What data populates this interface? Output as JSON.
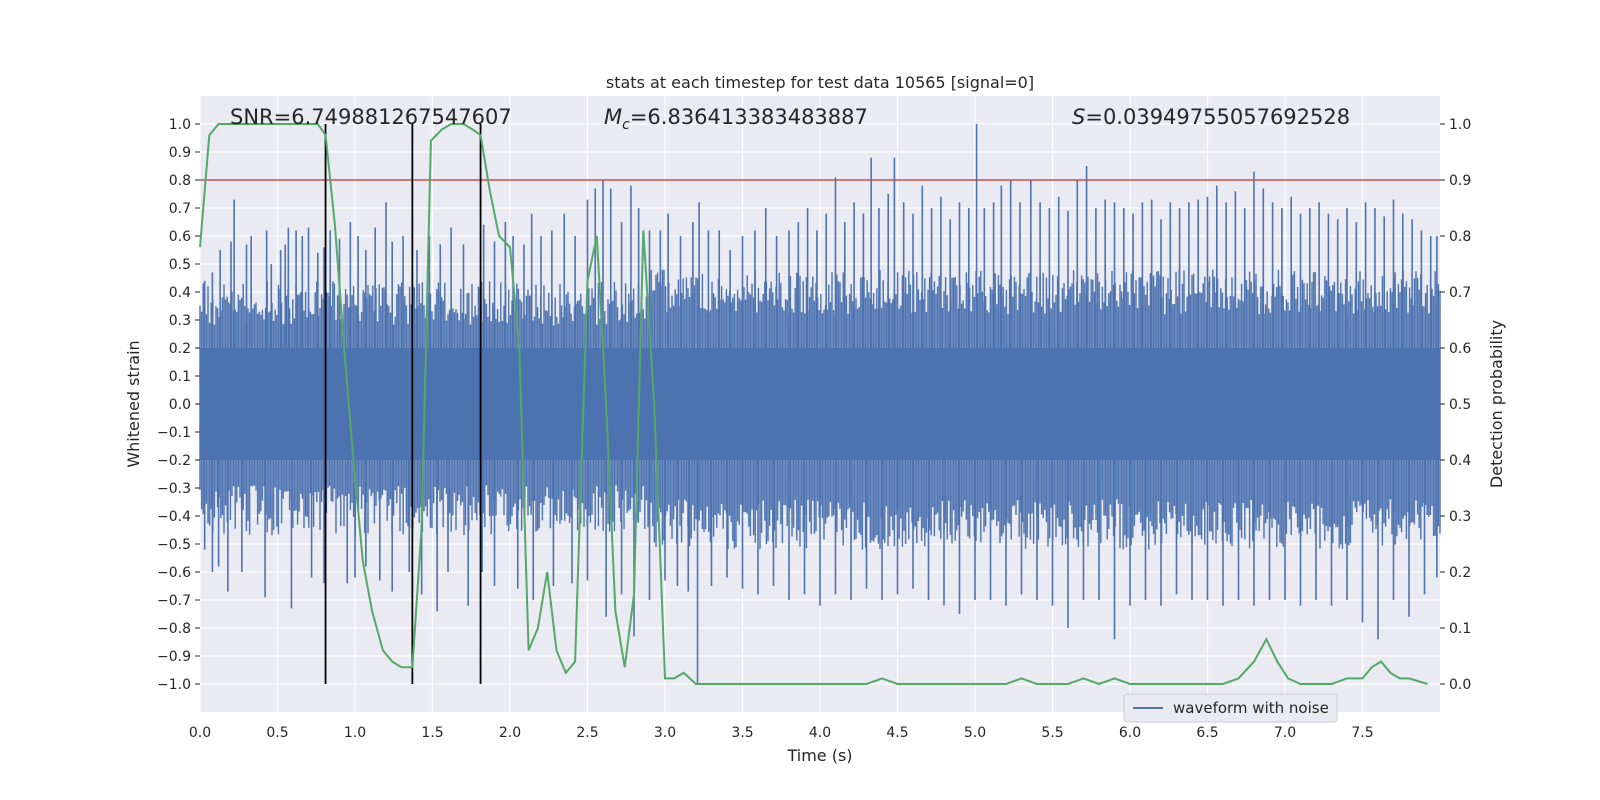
{
  "chart_data": {
    "type": "line",
    "title": "stats at each timestep for test data 10565 [signal=0]",
    "xlabel": "Time (s)",
    "ylabel": "Whitened strain",
    "ylabel_right": "Detection probability",
    "xlim": [
      0,
      8
    ],
    "ylim": [
      -1.1,
      1.1
    ],
    "ylim_right": [
      -0.05,
      1.05
    ],
    "xticks": [
      "0.0",
      "0.5",
      "1.0",
      "1.5",
      "2.0",
      "2.5",
      "3.0",
      "3.5",
      "4.0",
      "4.5",
      "5.0",
      "5.5",
      "6.0",
      "6.5",
      "7.0",
      "7.5"
    ],
    "yticks": [
      "1.0",
      "0.9",
      "0.8",
      "0.7",
      "0.6",
      "0.5",
      "0.4",
      "0.3",
      "0.2",
      "0.1",
      "0.0",
      "−0.1",
      "−0.2",
      "−0.3",
      "−0.4",
      "−0.5",
      "−0.6",
      "−0.7",
      "−0.8",
      "−0.9",
      "−1.0"
    ],
    "yticks_right": [
      "1.0",
      "0.9",
      "0.8",
      "0.7",
      "0.6",
      "0.5",
      "0.4",
      "0.3",
      "0.2",
      "0.1",
      "0.0"
    ],
    "grid": true,
    "legend_position": "lower-right",
    "annotations": {
      "snr": "SNR=6.749881267547607",
      "mc_symbol": "M",
      "mc_sub": "c",
      "mc_value": "=6.836413383483887",
      "s_symbol": "S",
      "s_value": "=0.03949755057692528"
    },
    "threshold": {
      "y": 0.8,
      "color": "#c44e52"
    },
    "vlines": [
      {
        "x": 0.81,
        "y_range": [
          -1.0,
          1.0
        ]
      },
      {
        "x": 1.37,
        "y_range": [
          -1.0,
          1.0
        ]
      },
      {
        "x": 1.81,
        "y_range": [
          -1.0,
          1.0
        ]
      }
    ],
    "series": [
      {
        "name": "waveform with noise",
        "color": "#4c72b0",
        "core_range": [
          -0.2,
          0.2
        ],
        "spikes_up": [
          [
            0.03,
            0.44
          ],
          [
            0.08,
            0.47
          ],
          [
            0.13,
            0.55
          ],
          [
            0.2,
            0.58
          ],
          [
            0.22,
            0.73
          ],
          [
            0.3,
            0.57
          ],
          [
            0.33,
            0.6
          ],
          [
            0.43,
            0.62
          ],
          [
            0.46,
            0.5
          ],
          [
            0.52,
            0.55
          ],
          [
            0.55,
            0.57
          ],
          [
            0.57,
            0.63
          ],
          [
            0.62,
            0.62
          ],
          [
            0.66,
            0.6
          ],
          [
            0.7,
            0.63
          ],
          [
            0.76,
            0.54
          ],
          [
            0.8,
            0.56
          ],
          [
            0.84,
            0.62
          ],
          [
            0.9,
            0.59
          ],
          [
            0.97,
            0.65
          ],
          [
            1.02,
            0.6
          ],
          [
            1.07,
            0.55
          ],
          [
            1.13,
            0.63
          ],
          [
            1.2,
            0.72
          ],
          [
            1.24,
            0.58
          ],
          [
            1.31,
            0.6
          ],
          [
            1.4,
            0.55
          ],
          [
            1.48,
            0.6
          ],
          [
            1.55,
            0.57
          ],
          [
            1.62,
            0.63
          ],
          [
            1.7,
            0.57
          ],
          [
            1.83,
            0.64
          ],
          [
            1.9,
            0.58
          ],
          [
            1.97,
            0.65
          ],
          [
            2.02,
            0.6
          ],
          [
            2.09,
            0.57
          ],
          [
            2.14,
            0.68
          ],
          [
            2.2,
            0.6
          ],
          [
            2.27,
            0.62
          ],
          [
            2.35,
            0.68
          ],
          [
            2.42,
            0.6
          ],
          [
            2.5,
            0.73
          ],
          [
            2.55,
            0.77
          ],
          [
            2.6,
            0.8
          ],
          [
            2.65,
            0.77
          ],
          [
            2.72,
            0.65
          ],
          [
            2.78,
            0.78
          ],
          [
            2.83,
            0.7
          ],
          [
            2.9,
            0.62
          ],
          [
            2.97,
            0.62
          ],
          [
            3.02,
            0.68
          ],
          [
            3.1,
            0.6
          ],
          [
            3.18,
            0.65
          ],
          [
            3.22,
            0.72
          ],
          [
            3.28,
            0.62
          ],
          [
            3.35,
            0.62
          ],
          [
            3.42,
            0.55
          ],
          [
            3.5,
            0.6
          ],
          [
            3.58,
            0.62
          ],
          [
            3.65,
            0.7
          ],
          [
            3.72,
            0.6
          ],
          [
            3.8,
            0.62
          ],
          [
            3.86,
            0.65
          ],
          [
            3.92,
            0.7
          ],
          [
            3.98,
            0.62
          ],
          [
            4.04,
            0.68
          ],
          [
            4.1,
            0.81
          ],
          [
            4.16,
            0.65
          ],
          [
            4.22,
            0.72
          ],
          [
            4.28,
            0.68
          ],
          [
            4.33,
            0.88
          ],
          [
            4.38,
            0.7
          ],
          [
            4.44,
            0.75
          ],
          [
            4.48,
            0.88
          ],
          [
            4.54,
            0.72
          ],
          [
            4.6,
            0.68
          ],
          [
            4.66,
            0.78
          ],
          [
            4.72,
            0.7
          ],
          [
            4.78,
            0.74
          ],
          [
            4.84,
            0.66
          ],
          [
            4.9,
            0.72
          ],
          [
            4.96,
            0.7
          ],
          [
            5.01,
            1.0
          ],
          [
            5.06,
            0.7
          ],
          [
            5.12,
            0.72
          ],
          [
            5.17,
            0.78
          ],
          [
            5.23,
            0.8
          ],
          [
            5.29,
            0.72
          ],
          [
            5.36,
            0.8
          ],
          [
            5.42,
            0.72
          ],
          [
            5.48,
            0.7
          ],
          [
            5.54,
            0.74
          ],
          [
            5.6,
            0.69
          ],
          [
            5.66,
            0.8
          ],
          [
            5.72,
            0.85
          ],
          [
            5.78,
            0.7
          ],
          [
            5.84,
            0.73
          ],
          [
            5.9,
            0.72
          ],
          [
            5.96,
            0.7
          ],
          [
            6.02,
            0.68
          ],
          [
            6.08,
            0.72
          ],
          [
            6.14,
            0.73
          ],
          [
            6.2,
            0.66
          ],
          [
            6.26,
            0.72
          ],
          [
            6.32,
            0.7
          ],
          [
            6.38,
            0.72
          ],
          [
            6.44,
            0.73
          ],
          [
            6.5,
            0.74
          ],
          [
            6.56,
            0.78
          ],
          [
            6.62,
            0.72
          ],
          [
            6.68,
            0.76
          ],
          [
            6.74,
            0.7
          ],
          [
            6.8,
            0.83
          ],
          [
            6.86,
            0.77
          ],
          [
            6.92,
            0.72
          ],
          [
            6.98,
            0.7
          ],
          [
            7.04,
            0.74
          ],
          [
            7.1,
            0.68
          ],
          [
            7.16,
            0.7
          ],
          [
            7.22,
            0.72
          ],
          [
            7.28,
            0.68
          ],
          [
            7.34,
            0.66
          ],
          [
            7.4,
            0.7
          ],
          [
            7.46,
            0.65
          ],
          [
            7.52,
            0.72
          ],
          [
            7.58,
            0.7
          ],
          [
            7.64,
            0.67
          ],
          [
            7.7,
            0.73
          ],
          [
            7.76,
            0.68
          ],
          [
            7.82,
            0.66
          ],
          [
            7.88,
            0.62
          ],
          [
            7.94,
            0.6
          ],
          [
            7.98,
            0.6
          ]
        ],
        "spikes_down": [
          [
            0.03,
            -0.52
          ],
          [
            0.08,
            -0.6
          ],
          [
            0.12,
            -0.58
          ],
          [
            0.18,
            -0.67
          ],
          [
            0.27,
            -0.6
          ],
          [
            0.42,
            -0.69
          ],
          [
            0.59,
            -0.73
          ],
          [
            0.72,
            -0.62
          ],
          [
            0.8,
            -0.64
          ],
          [
            0.95,
            -0.64
          ],
          [
            1.0,
            -0.62
          ],
          [
            1.07,
            -0.58
          ],
          [
            1.16,
            -0.63
          ],
          [
            1.24,
            -0.67
          ],
          [
            1.35,
            -0.6
          ],
          [
            1.43,
            -0.68
          ],
          [
            1.53,
            -0.74
          ],
          [
            1.6,
            -0.6
          ],
          [
            1.73,
            -0.72
          ],
          [
            1.82,
            -0.6
          ],
          [
            1.9,
            -0.65
          ],
          [
            2.05,
            -0.66
          ],
          [
            2.15,
            -0.7
          ],
          [
            2.28,
            -0.65
          ],
          [
            2.4,
            -0.64
          ],
          [
            2.5,
            -0.63
          ],
          [
            2.62,
            -0.76
          ],
          [
            2.72,
            -0.68
          ],
          [
            2.8,
            -0.83
          ],
          [
            2.9,
            -0.7
          ],
          [
            3.0,
            -0.63
          ],
          [
            3.08,
            -0.65
          ],
          [
            3.15,
            -0.67
          ],
          [
            3.21,
            -1.0
          ],
          [
            3.3,
            -0.65
          ],
          [
            3.4,
            -0.62
          ],
          [
            3.5,
            -0.66
          ],
          [
            3.6,
            -0.68
          ],
          [
            3.7,
            -0.65
          ],
          [
            3.8,
            -0.7
          ],
          [
            3.9,
            -0.68
          ],
          [
            4.0,
            -0.72
          ],
          [
            4.1,
            -0.68
          ],
          [
            4.2,
            -0.7
          ],
          [
            4.3,
            -0.66
          ],
          [
            4.4,
            -0.7
          ],
          [
            4.5,
            -0.68
          ],
          [
            4.6,
            -0.66
          ],
          [
            4.7,
            -0.7
          ],
          [
            4.8,
            -0.72
          ],
          [
            4.9,
            -0.75
          ],
          [
            5.0,
            -0.7
          ],
          [
            5.1,
            -0.7
          ],
          [
            5.2,
            -0.72
          ],
          [
            5.3,
            -0.68
          ],
          [
            5.4,
            -0.7
          ],
          [
            5.5,
            -0.72
          ],
          [
            5.6,
            -0.8
          ],
          [
            5.7,
            -0.7
          ],
          [
            5.8,
            -0.7
          ],
          [
            5.9,
            -0.84
          ],
          [
            6.0,
            -0.72
          ],
          [
            6.1,
            -0.7
          ],
          [
            6.2,
            -0.72
          ],
          [
            6.3,
            -0.68
          ],
          [
            6.4,
            -0.7
          ],
          [
            6.5,
            -0.7
          ],
          [
            6.6,
            -0.72
          ],
          [
            6.7,
            -0.7
          ],
          [
            6.8,
            -0.72
          ],
          [
            6.9,
            -0.7
          ],
          [
            7.0,
            -0.7
          ],
          [
            7.1,
            -0.72
          ],
          [
            7.2,
            -0.7
          ],
          [
            7.3,
            -0.72
          ],
          [
            7.4,
            -0.7
          ],
          [
            7.5,
            -0.78
          ],
          [
            7.6,
            -0.84
          ],
          [
            7.7,
            -0.7
          ],
          [
            7.8,
            -0.76
          ],
          [
            7.9,
            -0.68
          ],
          [
            7.98,
            -0.62
          ]
        ]
      },
      {
        "name": "",
        "color": "#55a868",
        "axis": "right",
        "x": [
          0.0,
          0.06,
          0.12,
          0.2,
          0.3,
          0.4,
          0.5,
          0.6,
          0.7,
          0.76,
          0.81,
          0.87,
          0.93,
          0.99,
          1.05,
          1.11,
          1.18,
          1.24,
          1.3,
          1.37,
          1.43,
          1.49,
          1.56,
          1.62,
          1.7,
          1.76,
          1.81,
          1.87,
          1.93,
          2.0,
          2.06,
          2.12,
          2.18,
          2.24,
          2.3,
          2.36,
          2.42,
          2.5,
          2.56,
          2.62,
          2.68,
          2.74,
          2.8,
          2.86,
          2.93,
          3.0,
          3.06,
          3.12,
          3.2,
          3.3,
          3.4,
          3.5,
          3.6,
          3.7,
          3.8,
          4.0,
          4.2,
          4.3,
          4.4,
          4.5,
          4.6,
          4.7,
          4.8,
          4.9,
          5.0,
          5.1,
          5.2,
          5.3,
          5.4,
          5.5,
          5.6,
          5.7,
          5.8,
          5.9,
          6.0,
          6.2,
          6.4,
          6.6,
          6.7,
          6.8,
          6.88,
          6.95,
          7.02,
          7.1,
          7.2,
          7.3,
          7.4,
          7.5,
          7.56,
          7.62,
          7.68,
          7.74,
          7.8,
          7.92
        ],
        "y": [
          0.78,
          0.98,
          1.0,
          1.0,
          1.0,
          1.0,
          1.0,
          1.0,
          1.0,
          1.0,
          0.98,
          0.82,
          0.6,
          0.4,
          0.22,
          0.13,
          0.06,
          0.04,
          0.03,
          0.03,
          0.28,
          0.97,
          0.99,
          1.0,
          1.0,
          0.99,
          0.98,
          0.88,
          0.8,
          0.78,
          0.6,
          0.06,
          0.1,
          0.2,
          0.06,
          0.02,
          0.04,
          0.72,
          0.8,
          0.5,
          0.13,
          0.03,
          0.16,
          0.81,
          0.5,
          0.01,
          0.01,
          0.02,
          0.0,
          0.0,
          0.0,
          0.0,
          0.0,
          0.0,
          0.0,
          0.0,
          0.0,
          0.0,
          0.01,
          0.0,
          0.0,
          0.0,
          0.0,
          0.0,
          0.0,
          0.0,
          0.0,
          0.01,
          0.0,
          0.0,
          0.0,
          0.01,
          0.0,
          0.01,
          0.0,
          0.0,
          0.0,
          0.0,
          0.01,
          0.04,
          0.08,
          0.04,
          0.01,
          0.0,
          0.0,
          0.0,
          0.01,
          0.01,
          0.03,
          0.04,
          0.02,
          0.01,
          0.01,
          0.0
        ]
      }
    ]
  },
  "legend": {
    "label": "waveform with noise"
  }
}
